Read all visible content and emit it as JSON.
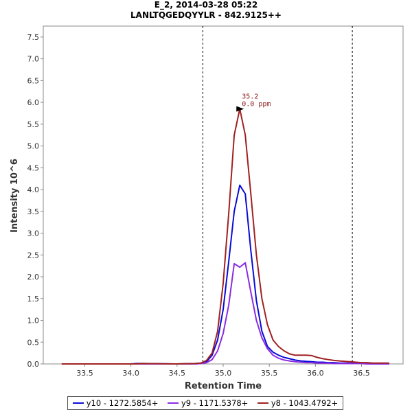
{
  "chart_data": {
    "type": "line",
    "title": "E_2, 2014-03-28 05:22",
    "subtitle": "LANLTQGEDQYYLR - 842.9125++",
    "xlabel": "Retention Time",
    "ylabel": "Intensity 10^6",
    "xlim": [
      33.05,
      36.95
    ],
    "ylim": [
      0,
      7.75
    ],
    "xticks": [
      33.5,
      34.0,
      34.5,
      35.0,
      35.5,
      36.0,
      36.5
    ],
    "yticks": [
      0.0,
      0.5,
      1.0,
      1.5,
      2.0,
      2.5,
      3.0,
      3.5,
      4.0,
      4.5,
      5.0,
      5.5,
      6.0,
      6.5,
      7.0,
      7.5
    ],
    "integration_boundaries": [
      34.78,
      36.4
    ],
    "annotation": {
      "rt_label": "35.2",
      "ppm_label": "0.0 ppm",
      "x": 35.24,
      "y": 5.85
    },
    "x": [
      33.25,
      33.5,
      33.75,
      34.0,
      34.06,
      34.12,
      34.5,
      34.7,
      34.76,
      34.82,
      34.88,
      34.94,
      35.0,
      35.06,
      35.12,
      35.18,
      35.24,
      35.3,
      35.36,
      35.42,
      35.48,
      35.54,
      35.6,
      35.66,
      35.72,
      35.78,
      35.84,
      35.9,
      35.96,
      36.02,
      36.08,
      36.14,
      36.2,
      36.26,
      36.32,
      36.38,
      36.44,
      36.5,
      36.56,
      36.62,
      36.68,
      36.8
    ],
    "series": [
      {
        "name": "y10 - 1272.5854+",
        "color": "#0a0ad8",
        "values": [
          0.0,
          0.0,
          0.0,
          0.0,
          0.01,
          0.01,
          0.0,
          0.01,
          0.02,
          0.05,
          0.2,
          0.55,
          1.25,
          2.35,
          3.5,
          4.1,
          3.9,
          2.6,
          1.45,
          0.75,
          0.4,
          0.27,
          0.2,
          0.15,
          0.12,
          0.09,
          0.07,
          0.06,
          0.05,
          0.04,
          0.04,
          0.03,
          0.03,
          0.02,
          0.02,
          0.02,
          0.02,
          0.02,
          0.01,
          0.01,
          0.01,
          0.01
        ]
      },
      {
        "name": "y9 - 1171.5378+",
        "color": "#8a2be2",
        "values": [
          0.0,
          0.0,
          0.0,
          0.0,
          0.0,
          0.0,
          0.0,
          0.0,
          0.01,
          0.03,
          0.1,
          0.3,
          0.7,
          1.35,
          2.3,
          2.22,
          2.32,
          1.65,
          1.0,
          0.6,
          0.35,
          0.2,
          0.13,
          0.09,
          0.07,
          0.05,
          0.04,
          0.03,
          0.03,
          0.02,
          0.02,
          0.02,
          0.01,
          0.01,
          0.01,
          0.01,
          0.01,
          0.01,
          0.0,
          0.0,
          0.0,
          0.0
        ]
      },
      {
        "name": "y8 - 1043.4792+",
        "color": "#a02020",
        "values": [
          0.0,
          0.0,
          0.0,
          0.0,
          0.0,
          0.01,
          0.0,
          0.01,
          0.02,
          0.08,
          0.25,
          0.75,
          1.85,
          3.45,
          5.25,
          5.85,
          5.25,
          3.9,
          2.5,
          1.5,
          0.9,
          0.55,
          0.4,
          0.3,
          0.23,
          0.2,
          0.2,
          0.2,
          0.19,
          0.15,
          0.12,
          0.1,
          0.08,
          0.07,
          0.06,
          0.05,
          0.04,
          0.03,
          0.03,
          0.02,
          0.02,
          0.02
        ]
      }
    ]
  }
}
